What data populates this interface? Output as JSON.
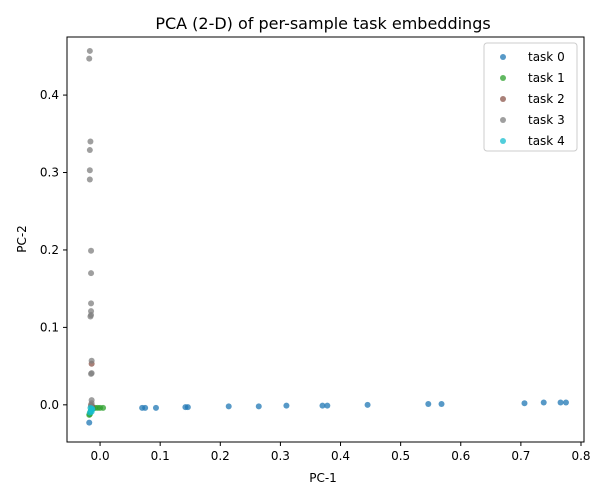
{
  "chart_data": {
    "type": "scatter",
    "title": "PCA (2-D) of per-sample task embeddings",
    "xlabel": "PC-1",
    "ylabel": "PC-2",
    "xlim": [
      -0.055,
      0.805
    ],
    "ylim": [
      -0.048,
      0.475
    ],
    "xticks": [
      0.0,
      0.1,
      0.2,
      0.3,
      0.4,
      0.5,
      0.6,
      0.7,
      0.8
    ],
    "xtick_labels": [
      "0.0",
      "0.1",
      "0.2",
      "0.3",
      "0.4",
      "0.5",
      "0.6",
      "0.7",
      "0.8"
    ],
    "yticks": [
      0.0,
      0.1,
      0.2,
      0.3,
      0.4
    ],
    "ytick_labels": [
      "0.0",
      "0.1",
      "0.2",
      "0.3",
      "0.4"
    ],
    "grid": false,
    "legend_position": "top-right",
    "series": [
      {
        "name": "task 0",
        "color": "#1f77b4",
        "points": [
          [
            -0.018,
            -0.023
          ],
          [
            0.07,
            -0.004
          ],
          [
            0.075,
            -0.004
          ],
          [
            0.093,
            -0.004
          ],
          [
            0.142,
            -0.003
          ],
          [
            0.146,
            -0.003
          ],
          [
            0.214,
            -0.002
          ],
          [
            0.264,
            -0.002
          ],
          [
            0.31,
            -0.001
          ],
          [
            0.37,
            -0.001
          ],
          [
            0.378,
            -0.001
          ],
          [
            0.445,
            0.0
          ],
          [
            0.546,
            0.001
          ],
          [
            0.568,
            0.001
          ],
          [
            0.706,
            0.002
          ],
          [
            0.738,
            0.003
          ],
          [
            0.766,
            0.003
          ],
          [
            0.775,
            0.003
          ]
        ]
      },
      {
        "name": "task 1",
        "color": "#2ca02c",
        "points": [
          [
            -0.013,
            -0.004
          ],
          [
            -0.008,
            -0.004
          ],
          [
            -0.004,
            -0.004
          ],
          [
            0.0,
            -0.004
          ],
          [
            0.005,
            -0.004
          ],
          [
            -0.015,
            -0.007
          ],
          [
            -0.017,
            -0.012
          ],
          [
            -0.018,
            -0.013
          ],
          [
            -0.016,
            -0.009
          ],
          [
            -0.012,
            -0.005
          ]
        ]
      },
      {
        "name": "task 2",
        "color": "#8c564b",
        "points": [
          [
            -0.014,
            0.053
          ],
          [
            -0.015,
            0.0
          ],
          [
            -0.013,
            -0.002
          ]
        ]
      },
      {
        "name": "task 3",
        "color": "#7f7f7f",
        "points": [
          [
            -0.017,
            0.457
          ],
          [
            -0.018,
            0.447
          ],
          [
            -0.016,
            0.34
          ],
          [
            -0.017,
            0.329
          ],
          [
            -0.017,
            0.303
          ],
          [
            -0.017,
            0.291
          ],
          [
            -0.015,
            0.199
          ],
          [
            -0.015,
            0.17
          ],
          [
            -0.015,
            0.131
          ],
          [
            -0.015,
            0.121
          ],
          [
            -0.015,
            0.116
          ],
          [
            -0.016,
            0.114
          ],
          [
            -0.014,
            0.057
          ],
          [
            -0.014,
            0.041
          ],
          [
            -0.015,
            0.04
          ],
          [
            -0.014,
            0.006
          ],
          [
            -0.014,
            0.002
          ],
          [
            -0.015,
            -0.002
          ]
        ]
      },
      {
        "name": "task 4",
        "color": "#17becf",
        "points": [
          [
            -0.016,
            -0.004
          ],
          [
            -0.013,
            -0.005
          ],
          [
            -0.015,
            -0.007
          ],
          [
            -0.014,
            -0.009
          ],
          [
            -0.017,
            -0.01
          ],
          [
            -0.013,
            -0.006
          ]
        ]
      }
    ]
  }
}
